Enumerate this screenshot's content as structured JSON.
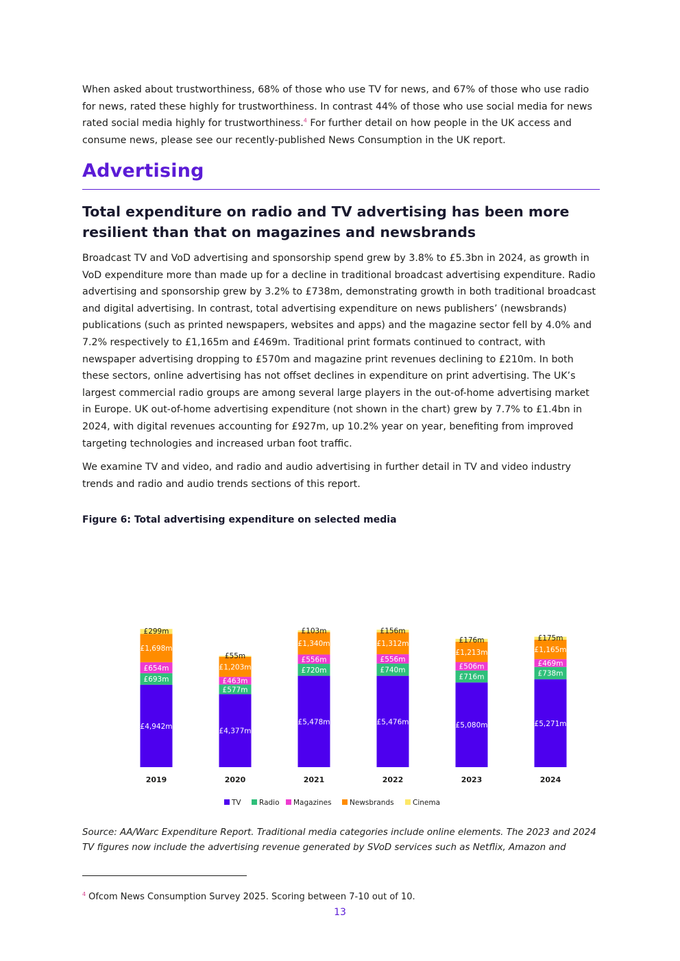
{
  "intro": {
    "text": "When asked about trustworthiness, 68% of those who use TV for news, and 67% of those who use radio for news, rated these highly for trustworthiness. In contrast 44% of those who use social media for news rated social media highly for trustworthiness.",
    "footnote_ref": "4",
    "text_after": " For further detail on how people in the UK access and consume news, please see our recently-published News Consumption in the UK report."
  },
  "section_title": "Advertising",
  "subheading": "Total expenditure on radio and TV advertising has been more resilient than that on magazines and newsbrands",
  "paragraphs": [
    "Broadcast TV and VoD advertising and sponsorship spend grew by 3.8% to £5.3bn in 2024, as growth in VoD expenditure more than made up for a decline in traditional broadcast advertising expenditure. Radio advertising and sponsorship grew by 3.2% to £738m, demonstrating growth in both traditional broadcast and digital advertising. In contrast, total advertising expenditure on news publishers’ (newsbrands) publications (such as printed newspapers, websites and apps) and the magazine sector fell by 4.0% and 7.2% respectively to £1,165m and £469m. Traditional print formats continued to contract, with newspaper advertising dropping to £570m and magazine print revenues declining to £210m. In both these sectors, online advertising has not offset declines in expenditure on print advertising.  The UK’s largest commercial radio groups are among several large players in the out-of-home advertising market in Europe. UK out-of-home advertising expenditure (not shown in the chart) grew by 7.7% to £1.4bn in 2024, with digital revenues accounting for £927m, up 10.2% year on year, benefiting from improved targeting technologies and increased urban foot traffic.",
    "We examine TV and video, and radio and audio advertising in further detail in TV and video industry trends and radio and audio trends sections of this report."
  ],
  "figure_title": "Figure 6: Total advertising expenditure on selected media",
  "chart_data": {
    "type": "bar",
    "stacked": true,
    "categories": [
      "2019",
      "2020",
      "2021",
      "2022",
      "2023",
      "2024"
    ],
    "series": [
      {
        "name": "TV",
        "color": "#4d00ee",
        "values": [
          4942,
          4377,
          5478,
          5476,
          5080,
          5271
        ],
        "labels": [
          "£4,942m",
          "£4,377m",
          "£5,478m",
          "£5,476m",
          "£5,080m",
          "£5,271m"
        ]
      },
      {
        "name": "Radio",
        "color": "#2fbf7a",
        "values": [
          693,
          577,
          720,
          740,
          716,
          738
        ],
        "labels": [
          "£693m",
          "£577m",
          "£720m",
          "£740m",
          "£716m",
          "£738m"
        ]
      },
      {
        "name": "Magazines",
        "color": "#ee3bd0",
        "values": [
          654,
          463,
          556,
          556,
          506,
          469
        ],
        "labels": [
          "£654m",
          "£463m",
          "£556m",
          "£556m",
          "£506m",
          "£469m"
        ]
      },
      {
        "name": "Newsbrands",
        "color": "#ff8c00",
        "values": [
          1698,
          1203,
          1340,
          1312,
          1213,
          1165
        ],
        "labels": [
          "£1,698m",
          "£1,203m",
          "£1,340m",
          "£1,312m",
          "£1,213m",
          "£1,165m"
        ]
      },
      {
        "name": "Cinema",
        "color": "#fde868",
        "values": [
          299,
          55,
          103,
          156,
          176,
          175
        ],
        "labels": [
          "£299m",
          "£55m",
          "£103m",
          "£156m",
          "£176m",
          "£175m"
        ]
      }
    ],
    "legend_position": "bottom",
    "grid": false
  },
  "source_text": "Source: AA/Warc Expenditure Report. Traditional media categories include online elements. The 2023 and 2024 TV figures now include the advertising revenue generated by SVoD services such as Netflix, Amazon and",
  "footnote": {
    "number": "4",
    "text": "Ofcom News Consumption Survey 2025. Scoring between 7-10 out of 10."
  },
  "page_number": "13"
}
